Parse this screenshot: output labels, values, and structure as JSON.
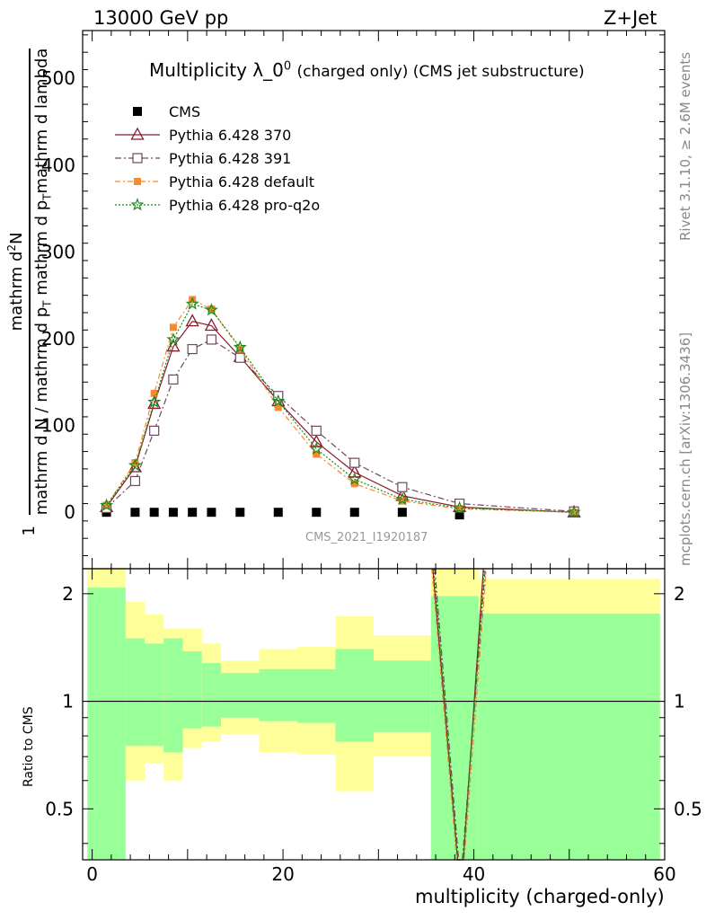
{
  "header": {
    "left": "13000 GeV pp",
    "right": "Z+Jet"
  },
  "side_labels": {
    "rivet": "Rivet 3.1.10, ≥ 2.6M events",
    "mcplots": "mcplots.cern.ch [arXiv:1306.3436]"
  },
  "analysis_id": "CMS_2021_I1920187",
  "colors": {
    "cms": "#000000",
    "p370": "#8b1a2b",
    "p391": "#6e4a5e",
    "pdefault": "#f58a2f",
    "pproq2o": "#1a8a1a",
    "band_inner": "#99ff99",
    "band_outer": "#ffff99"
  },
  "chart_data": [
    {
      "type": "line",
      "title_main": "Multiplicity λ_0",
      "title_sup": "0",
      "title_rest": "(charged only) (CMS jet substructure)",
      "ylabel_top": "1",
      "ylabel_line1": "mathrm d N / mathrm d p",
      "ylabel_line1_sub": "T",
      "ylabel_line1_end": " mathrm d p",
      "ylabel_line1_sub2": "T",
      "ylabel_line1_end2": "mathrm d lambda",
      "ylabel_bottom": "mathrm d N / mathrm d p",
      "ylabel_bottom_sub": "T",
      "ylabel_bottom_end": " mathrm d p",
      "ylabel_num": "mathrm d",
      "ylabel_num_sup": "2",
      "ylabel_num_end": "N",
      "xlim": [
        -1,
        60
      ],
      "ylim": [
        -65,
        555
      ],
      "yticks": [
        0,
        100,
        200,
        300,
        400,
        500
      ],
      "ytick_labels": [
        "0",
        "100",
        "200",
        "300",
        "400",
        "500"
      ],
      "legend_position": "top-left",
      "series": [
        {
          "name": "CMS",
          "x": [
            1.5,
            4.5,
            6.5,
            8.5,
            10.5,
            12.5,
            15.5,
            19.5,
            23.5,
            27.5,
            32.5,
            38.5,
            50.5
          ],
          "y": [
            0,
            0,
            0,
            0,
            0,
            0,
            0,
            0,
            0,
            0,
            0,
            -3,
            0
          ]
        },
        {
          "name": "Pythia 6.428 370",
          "x": [
            1.5,
            4.5,
            6.5,
            8.5,
            10.5,
            12.5,
            15.5,
            19.5,
            23.5,
            27.5,
            32.5,
            38.5,
            50.5
          ],
          "y": [
            6,
            52,
            125,
            191,
            220,
            215,
            179,
            128,
            81,
            46,
            19,
            6,
            0
          ]
        },
        {
          "name": "Pythia 6.428 391",
          "x": [
            1.5,
            4.5,
            6.5,
            8.5,
            10.5,
            12.5,
            15.5,
            19.5,
            23.5,
            27.5,
            32.5,
            38.5,
            50.5
          ],
          "y": [
            5,
            36,
            94,
            153,
            188,
            199,
            178,
            134,
            94,
            57,
            29,
            10,
            1
          ]
        },
        {
          "name": "Pythia 6.428 default",
          "x": [
            1.5,
            4.5,
            6.5,
            8.5,
            10.5,
            12.5,
            15.5,
            19.5,
            23.5,
            27.5,
            32.5,
            38.5,
            50.5
          ],
          "y": [
            8,
            57,
            137,
            213,
            245,
            234,
            188,
            121,
            67,
            33,
            13,
            4,
            0
          ]
        },
        {
          "name": "Pythia 6.428 pro-q2o",
          "x": [
            1.5,
            4.5,
            6.5,
            8.5,
            10.5,
            12.5,
            15.5,
            19.5,
            23.5,
            27.5,
            32.5,
            38.5,
            50.5
          ],
          "y": [
            8,
            54,
            127,
            199,
            240,
            233,
            190,
            128,
            73,
            38,
            15,
            5,
            0
          ]
        }
      ]
    },
    {
      "type": "area",
      "ylabel": "Ratio to CMS",
      "xlabel": "multiplicity (charged-only)",
      "xlim": [
        -1,
        60
      ],
      "ylim": [
        0.36,
        2.35
      ],
      "log_scale_y": true,
      "xticks": [
        0,
        20,
        40,
        60
      ],
      "xtick_labels": [
        "0",
        "20",
        "40",
        "60"
      ],
      "yticks": [
        0.5,
        1,
        2
      ],
      "ytick_labels": [
        "0.5",
        "1",
        "2"
      ],
      "bins": [
        {
          "lo": -0.5,
          "hi": 3.5,
          "inner_lo": 0.35,
          "inner_hi": 2.08,
          "outer_lo": 0.35,
          "outer_hi": 2.35
        },
        {
          "lo": 3.5,
          "hi": 5.5,
          "inner_lo": 0.75,
          "inner_hi": 1.5,
          "outer_lo": 0.6,
          "outer_hi": 1.9
        },
        {
          "lo": 5.5,
          "hi": 7.5,
          "inner_lo": 0.75,
          "inner_hi": 1.45,
          "outer_lo": 0.67,
          "outer_hi": 1.75
        },
        {
          "lo": 7.5,
          "hi": 9.5,
          "inner_lo": 0.72,
          "inner_hi": 1.5,
          "outer_lo": 0.6,
          "outer_hi": 1.6
        },
        {
          "lo": 9.5,
          "hi": 11.5,
          "inner_lo": 0.84,
          "inner_hi": 1.38,
          "outer_lo": 0.74,
          "outer_hi": 1.6
        },
        {
          "lo": 11.5,
          "hi": 13.5,
          "inner_lo": 0.85,
          "inner_hi": 1.28,
          "outer_lo": 0.77,
          "outer_hi": 1.45
        },
        {
          "lo": 13.5,
          "hi": 17.5,
          "inner_lo": 0.9,
          "inner_hi": 1.2,
          "outer_lo": 0.81,
          "outer_hi": 1.3
        },
        {
          "lo": 17.5,
          "hi": 21.5,
          "inner_lo": 0.88,
          "inner_hi": 1.23,
          "outer_lo": 0.72,
          "outer_hi": 1.4
        },
        {
          "lo": 21.5,
          "hi": 25.5,
          "inner_lo": 0.87,
          "inner_hi": 1.23,
          "outer_lo": 0.71,
          "outer_hi": 1.42
        },
        {
          "lo": 25.5,
          "hi": 29.5,
          "inner_lo": 0.77,
          "inner_hi": 1.4,
          "outer_lo": 0.56,
          "outer_hi": 1.73
        },
        {
          "lo": 29.5,
          "hi": 35.5,
          "inner_lo": 0.82,
          "inner_hi": 1.3,
          "outer_lo": 0.7,
          "outer_hi": 1.53
        },
        {
          "lo": 35.5,
          "hi": 40.5,
          "inner_lo": 0.36,
          "inner_hi": 1.97,
          "outer_lo": 0.36,
          "outer_hi": 2.35
        },
        {
          "lo": 40.5,
          "hi": 59.5,
          "inner_lo": 0.36,
          "inner_hi": 1.76,
          "outer_lo": 0.36,
          "outer_hi": 2.2
        }
      ],
      "ratio_lines": [
        {
          "name": "Pythia 6.428 370",
          "x": [
            35.7,
            38.3,
            38.9,
            41.0
          ],
          "y": [
            2.35,
            0.36,
            0.36,
            2.35
          ]
        },
        {
          "name": "Pythia 6.428 391",
          "x": [
            35.9,
            38.4,
            38.8,
            41.2
          ],
          "y": [
            2.35,
            0.36,
            0.36,
            2.35
          ]
        },
        {
          "name": "Pythia 6.428 default",
          "x": [
            35.6,
            38.2,
            39.0,
            41.3
          ],
          "y": [
            2.35,
            0.36,
            0.36,
            2.35
          ]
        },
        {
          "name": "Pythia 6.428 pro-q2o",
          "x": [
            35.8,
            38.3,
            38.9,
            41.1
          ],
          "y": [
            2.35,
            0.36,
            0.36,
            2.35
          ]
        }
      ]
    }
  ]
}
